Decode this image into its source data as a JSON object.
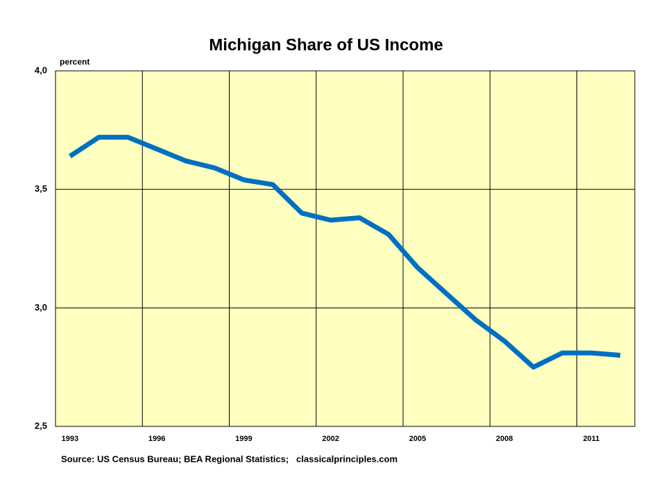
{
  "chart_data": {
    "type": "line",
    "title": "Michigan Share of US Income",
    "y_label": "percent",
    "source": "Source: US Census Bureau; BEA Regional Statistics;   classicalprinciples.com",
    "categories": [
      "1993",
      null,
      null,
      "1996",
      null,
      null,
      "1999",
      null,
      null,
      "2002",
      null,
      null,
      "2005",
      null,
      null,
      "2008",
      null,
      null,
      "2011",
      null
    ],
    "series": [
      {
        "name": "Michigan",
        "color": "#0070c0",
        "values": [
          3.64,
          3.72,
          3.72,
          3.67,
          3.62,
          3.59,
          3.54,
          3.52,
          3.4,
          3.37,
          3.38,
          3.31,
          3.17,
          3.06,
          2.95,
          2.86,
          2.75,
          2.81,
          2.81,
          2.8
        ]
      }
    ],
    "ylim": [
      2.5,
      4.0
    ],
    "yticks": [
      {
        "value": 2.5,
        "label": "2,5"
      },
      {
        "value": 3.0,
        "label": "3,0"
      },
      {
        "value": 3.5,
        "label": "3,5"
      },
      {
        "value": 4.0,
        "label": "4,0"
      }
    ],
    "grid": true,
    "plot_background": "#ffffc0"
  }
}
